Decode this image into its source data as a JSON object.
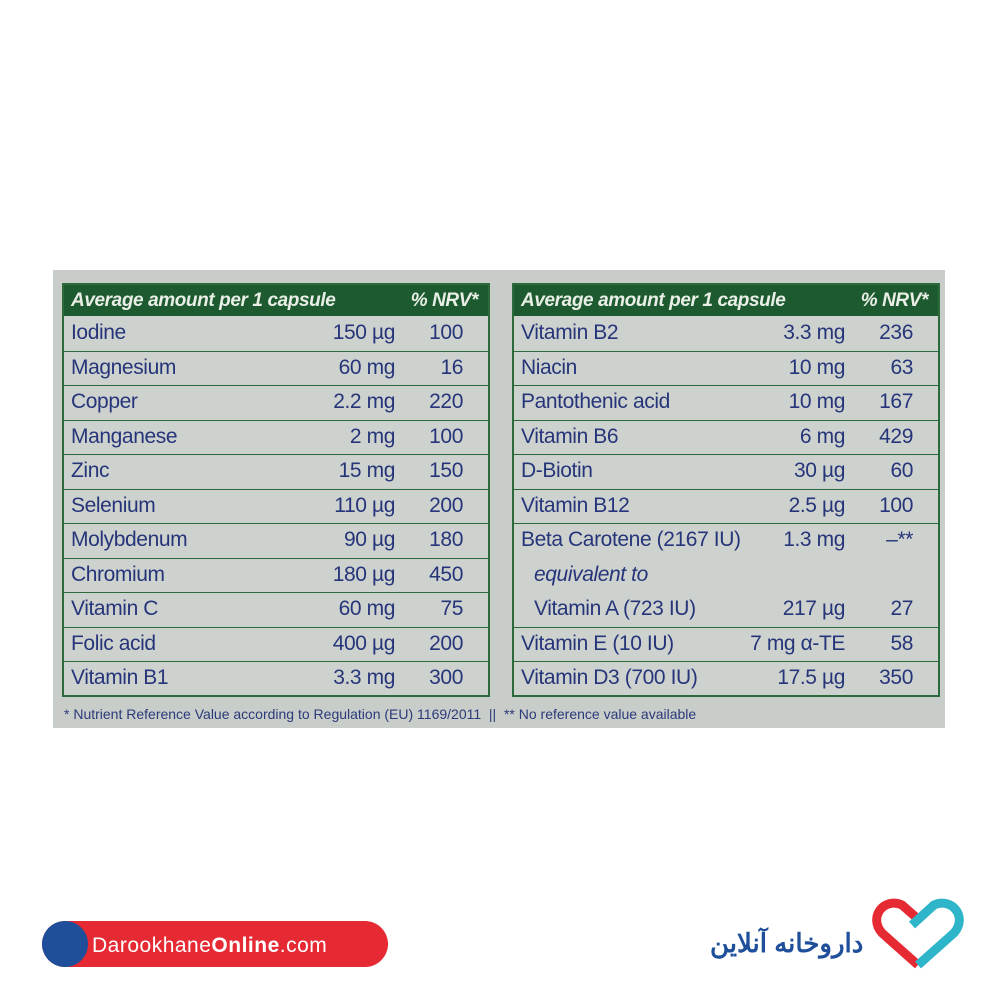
{
  "tables": [
    {
      "header": {
        "title": "Average amount per 1 capsule",
        "nrv": "% NRV*"
      },
      "rows": [
        {
          "name": "Iodine",
          "amount": "150 µg",
          "nrv": "100"
        },
        {
          "name": "Magnesium",
          "amount": "60 mg",
          "nrv": "16"
        },
        {
          "name": "Copper",
          "amount": "2.2 mg",
          "nrv": "220"
        },
        {
          "name": "Manganese",
          "amount": "2 mg",
          "nrv": "100"
        },
        {
          "name": "Zinc",
          "amount": "15 mg",
          "nrv": "150"
        },
        {
          "name": "Selenium",
          "amount": "110 µg",
          "nrv": "200"
        },
        {
          "name": "Molybdenum",
          "amount": "90 µg",
          "nrv": "180"
        },
        {
          "name": "Chromium",
          "amount": "180 µg",
          "nrv": "450"
        },
        {
          "name": "Vitamin C",
          "amount": "60 mg",
          "nrv": "75"
        },
        {
          "name": "Folic acid",
          "amount": "400 µg",
          "nrv": "200"
        },
        {
          "name": "Vitamin B1",
          "amount": "3.3 mg",
          "nrv": "300"
        }
      ]
    },
    {
      "header": {
        "title": "Average amount per 1 capsule",
        "nrv": "% NRV*"
      },
      "rows": [
        {
          "name": "Vitamin B2",
          "amount": "3.3 mg",
          "nrv": "236"
        },
        {
          "name": "Niacin",
          "amount": "10 mg",
          "nrv": "63"
        },
        {
          "name": "Pantothenic acid",
          "amount": "10 mg",
          "nrv": "167"
        },
        {
          "name": "Vitamin B6",
          "amount": "6 mg",
          "nrv": "429"
        },
        {
          "name": "D-Biotin",
          "amount": "30 µg",
          "nrv": "60"
        },
        {
          "name": "Vitamin B12",
          "amount": "2.5 µg",
          "nrv": "100"
        },
        {
          "name": "Beta Carotene (2167 IU)",
          "amount": "1.3 mg",
          "nrv": "–**",
          "sub": [
            {
              "note": "equivalent to"
            },
            {
              "name": "Vitamin A (723 IU)",
              "amount": "217 µg",
              "nrv": "27"
            }
          ]
        },
        {
          "name": "Vitamin E (10 IU)",
          "amount": "7 mg α-TE",
          "nrv": "58"
        },
        {
          "name": "Vitamin D3 (700 IU)",
          "amount": "17.5 µg",
          "nrv": "350"
        }
      ]
    }
  ],
  "footnote": "* Nutrient Reference Value according to Regulation (EU) 1169/2011  ||  ** No reference value available",
  "watermark": {
    "site": {
      "part1": "Darookhane",
      "part2": "Online",
      "part3": ".com"
    },
    "brand": "داروخانه آنلاین"
  }
}
